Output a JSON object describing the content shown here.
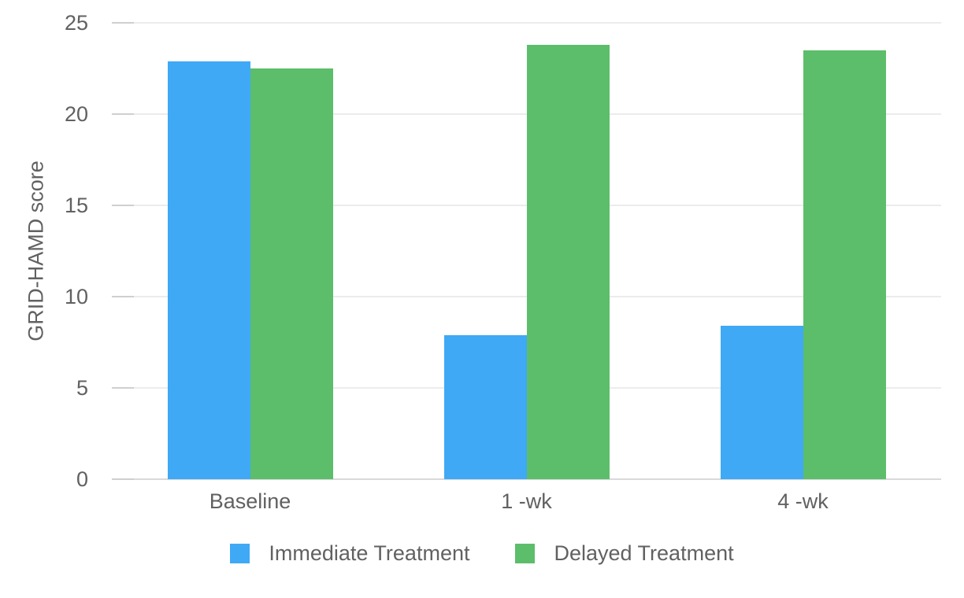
{
  "chart_data": {
    "type": "bar",
    "title": "",
    "categories": [
      "Baseline",
      "1 -wk",
      "4 -wk"
    ],
    "series": [
      {
        "name": "Immediate Treatment",
        "color": "#3FA9F5",
        "values": [
          22.9,
          7.9,
          8.4
        ]
      },
      {
        "name": "Delayed Treatment",
        "color": "#5CBE6A",
        "values": [
          22.5,
          23.8,
          23.5
        ]
      }
    ],
    "xlabel": "",
    "ylabel": "GRID-HAMD score",
    "ylim": [
      0,
      25
    ],
    "yticks": [
      0,
      5,
      10,
      15,
      20,
      25
    ],
    "grid": "horizontal",
    "legend_position": "bottom",
    "background_color": "#FFFFFF",
    "axis_text_color": "#616161",
    "gridline_color": "#ECECEC",
    "zero_line_color": "#D9D9D9"
  }
}
